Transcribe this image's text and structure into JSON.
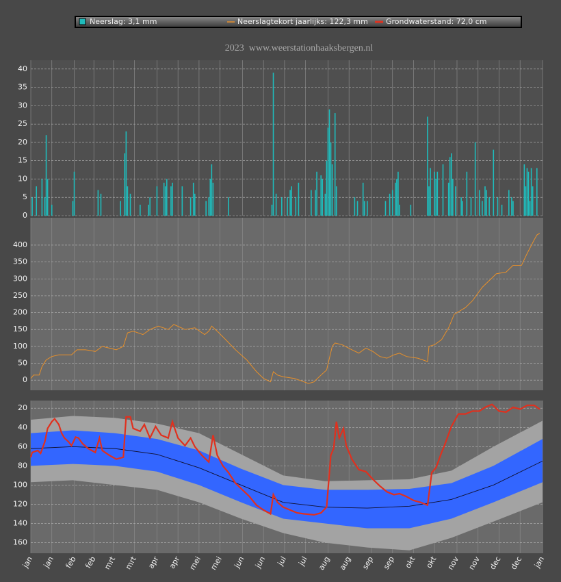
{
  "chart_data": [
    {
      "type": "bar",
      "title": "2023  www.weerstationhaaksbergen.nl",
      "ylim": [
        0,
        42.4
      ],
      "yticks": [
        0,
        5,
        10,
        15,
        20,
        25,
        30,
        35,
        40
      ],
      "grid": true,
      "series": [
        {
          "name": "Neerslag: 3,1 mm",
          "color": "#1fbcbc",
          "x": [
            1,
            4,
            8,
            10,
            11,
            12,
            15,
            30,
            31,
            48,
            50,
            64,
            67,
            68,
            69,
            71,
            78,
            84,
            85,
            90,
            95,
            96,
            97,
            100,
            101,
            108,
            114,
            116,
            117,
            125,
            127,
            128,
            129,
            130,
            141,
            172,
            173,
            175,
            179,
            183,
            185,
            186,
            189,
            191,
            200,
            203,
            204,
            207,
            208,
            210,
            211,
            212,
            213,
            214,
            215,
            217,
            218,
            231,
            233,
            237,
            238,
            240,
            253,
            256,
            258,
            260,
            261,
            262,
            263,
            271,
            283,
            284,
            285,
            288,
            289,
            290,
            294,
            298,
            299,
            300,
            301,
            303,
            307,
            308,
            311,
            314,
            317,
            320,
            322,
            324,
            325,
            327,
            330,
            333,
            336,
            341,
            343,
            344,
            352,
            353,
            354,
            355,
            356,
            357,
            358,
            361
          ],
          "values": [
            5,
            8,
            10,
            5,
            22,
            10,
            3,
            4,
            12,
            7,
            6,
            4,
            17,
            23,
            8,
            6,
            3,
            3,
            5,
            8,
            9,
            8,
            10,
            8,
            9,
            8,
            5,
            9,
            6,
            4,
            5,
            10,
            14,
            9,
            5,
            3,
            39,
            6,
            5,
            5,
            7,
            8,
            5,
            9,
            7,
            7,
            12,
            11,
            10,
            6,
            15,
            24,
            29,
            20,
            14,
            28,
            8,
            5,
            4,
            9,
            4,
            4,
            4,
            6,
            7,
            9,
            10,
            12,
            3,
            3,
            27,
            8,
            13,
            12,
            10,
            12,
            14,
            9,
            16,
            17,
            10,
            8,
            5,
            4,
            12,
            5,
            20,
            7,
            4,
            8,
            7,
            5,
            18,
            5,
            3,
            7,
            5,
            4,
            14,
            8,
            13,
            12,
            4,
            13,
            8,
            13
          ]
        }
      ]
    },
    {
      "type": "line",
      "ylim": [
        -30,
        481
      ],
      "yticks": [
        0,
        50,
        100,
        150,
        200,
        250,
        300,
        350,
        400
      ],
      "grid": true,
      "series": [
        {
          "name": "Neerslagtekort jaarlijks: 122,3 mm",
          "color": "#e8902a",
          "x": [
            0,
            2,
            6,
            8,
            11,
            15,
            20,
            29,
            33,
            39,
            46,
            51,
            56,
            61,
            66,
            69,
            73,
            80,
            85,
            91,
            98,
            102,
            110,
            117,
            124,
            127,
            129,
            133,
            139,
            146,
            154,
            161,
            166,
            171,
            173,
            176,
            180,
            188,
            193,
            198,
            202,
            207,
            211,
            215,
            217,
            222,
            229,
            234,
            239,
            244,
            249,
            254,
            259,
            263,
            268,
            276,
            283,
            284,
            288,
            293,
            298,
            302,
            310,
            315,
            322,
            327,
            332,
            339,
            344,
            350,
            354,
            359,
            361,
            363
          ],
          "values": [
            5,
            15,
            15,
            40,
            60,
            70,
            75,
            75,
            90,
            90,
            85,
            100,
            95,
            90,
            100,
            140,
            145,
            135,
            150,
            160,
            150,
            165,
            150,
            155,
            135,
            145,
            160,
            145,
            120,
            90,
            60,
            25,
            5,
            -5,
            25,
            15,
            10,
            5,
            -2,
            -10,
            -5,
            15,
            30,
            100,
            110,
            105,
            90,
            80,
            95,
            85,
            70,
            65,
            75,
            80,
            70,
            65,
            55,
            100,
            105,
            120,
            155,
            195,
            215,
            235,
            275,
            295,
            315,
            320,
            340,
            340,
            375,
            415,
            430,
            435
          ]
        }
      ]
    },
    {
      "type": "line",
      "inverted": true,
      "ylim": [
        12,
        171
      ],
      "yticks": [
        20,
        40,
        60,
        80,
        100,
        120,
        140,
        160
      ],
      "grid": true,
      "xlim": [
        0,
        365
      ],
      "xticks": [
        {
          "value": 0,
          "label": "jan"
        },
        {
          "value": 15,
          "label": "jan"
        },
        {
          "value": 31,
          "label": "feb"
        },
        {
          "value": 45,
          "label": "feb"
        },
        {
          "value": 59,
          "label": "mrt"
        },
        {
          "value": 74,
          "label": "mrt"
        },
        {
          "value": 90,
          "label": "apr"
        },
        {
          "value": 105,
          "label": "apr"
        },
        {
          "value": 120,
          "label": "mei"
        },
        {
          "value": 135,
          "label": "mei"
        },
        {
          "value": 151,
          "label": "jun"
        },
        {
          "value": 166,
          "label": "jun"
        },
        {
          "value": 181,
          "label": "jul"
        },
        {
          "value": 196,
          "label": "jul"
        },
        {
          "value": 212,
          "label": "aug"
        },
        {
          "value": 227,
          "label": "aug"
        },
        {
          "value": 243,
          "label": "sep"
        },
        {
          "value": 258,
          "label": "sep"
        },
        {
          "value": 273,
          "label": "okt"
        },
        {
          "value": 288,
          "label": "okt"
        },
        {
          "value": 304,
          "label": "nov"
        },
        {
          "value": 319,
          "label": "nov"
        },
        {
          "value": 334,
          "label": "dec"
        },
        {
          "value": 349,
          "label": "dec"
        },
        {
          "value": 365,
          "label": "jan"
        }
      ],
      "bands": [
        {
          "color": "#a3a3a3",
          "x": [
            0,
            30,
            60,
            90,
            120,
            150,
            180,
            210,
            240,
            270,
            300,
            330,
            365
          ],
          "low": [
            32,
            28,
            30,
            36,
            46,
            68,
            90,
            96,
            95,
            94,
            85,
            60,
            33
          ],
          "high": [
            97,
            95,
            100,
            105,
            118,
            135,
            150,
            160,
            165,
            168,
            155,
            138,
            118
          ]
        },
        {
          "color": "#3366ff",
          "x": [
            0,
            30,
            60,
            90,
            120,
            150,
            180,
            210,
            240,
            270,
            300,
            330,
            365
          ],
          "low": [
            46,
            43,
            46,
            52,
            64,
            83,
            100,
            105,
            105,
            104,
            98,
            80,
            52
          ],
          "high": [
            80,
            78,
            80,
            86,
            100,
            118,
            135,
            140,
            145,
            145,
            135,
            118,
            97
          ]
        }
      ],
      "series": [
        {
          "color": "#101030",
          "x": [
            0,
            30,
            60,
            90,
            120,
            150,
            180,
            210,
            240,
            270,
            300,
            330,
            365
          ],
          "values": [
            62,
            60,
            62,
            68,
            82,
            100,
            118,
            123,
            124,
            122,
            115,
            100,
            75
          ]
        },
        {
          "name": "Grondwaterstand: 72,0 cm",
          "color": "#e0301e",
          "x": [
            0,
            1,
            5,
            7,
            10,
            12,
            15,
            17,
            20,
            22,
            24,
            27,
            29,
            32,
            34,
            37,
            41,
            46,
            49,
            51,
            56,
            61,
            66,
            68,
            71,
            73,
            78,
            81,
            85,
            89,
            93,
            98,
            101,
            105,
            110,
            114,
            117,
            122,
            127,
            130,
            133,
            137,
            141,
            146,
            151,
            156,
            161,
            166,
            171,
            173,
            176,
            180,
            185,
            190,
            195,
            202,
            207,
            211,
            214,
            216,
            218,
            220,
            223,
            225,
            229,
            234,
            239,
            244,
            249,
            254,
            259,
            263,
            268,
            273,
            278,
            283,
            286,
            289,
            293,
            295,
            300,
            305,
            310,
            315,
            320,
            324,
            329,
            334,
            339,
            344,
            349,
            354,
            359,
            363
          ],
          "values": [
            71,
            66,
            64,
            67,
            55,
            41,
            34,
            31,
            37,
            46,
            51,
            55,
            59,
            50,
            51,
            57,
            62,
            66,
            51,
            64,
            69,
            73,
            71,
            29,
            29,
            41,
            44,
            37,
            51,
            39,
            48,
            51,
            34,
            51,
            59,
            51,
            60,
            69,
            76,
            48,
            69,
            80,
            87,
            98,
            105,
            112,
            121,
            126,
            130,
            110,
            118,
            123,
            126,
            129,
            130,
            131,
            129,
            123,
            69,
            62,
            34,
            51,
            41,
            59,
            73,
            84,
            86,
            94,
            101,
            107,
            110,
            109,
            112,
            116,
            118,
            121,
            87,
            82,
            66,
            59,
            39,
            26,
            26,
            23,
            23,
            19,
            16,
            23,
            24,
            19,
            21,
            17,
            17,
            21
          ]
        }
      ]
    }
  ]
}
